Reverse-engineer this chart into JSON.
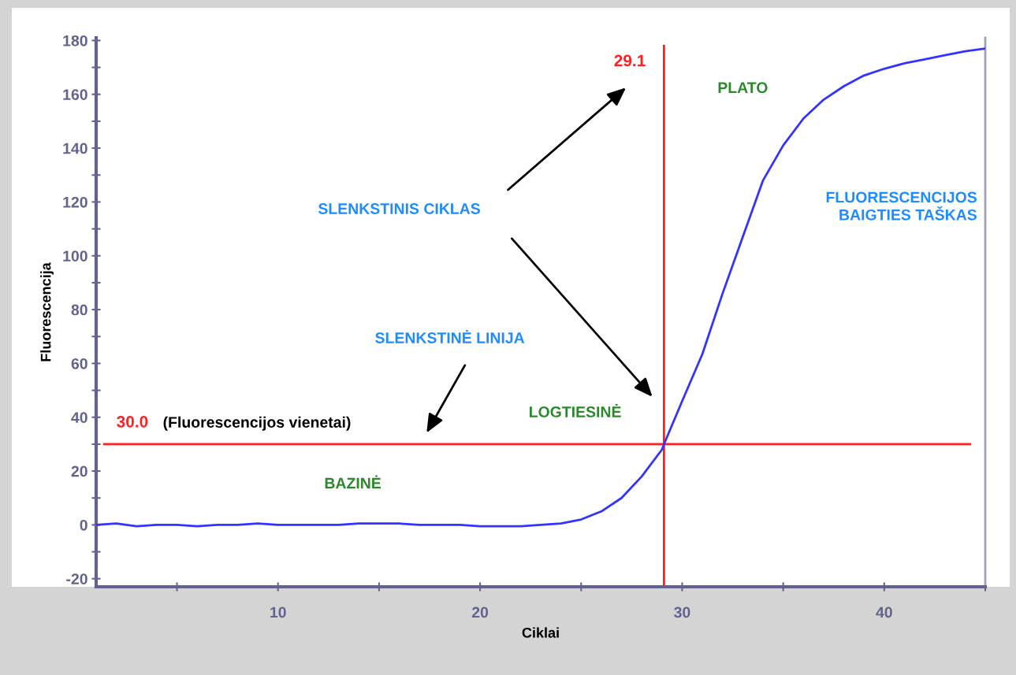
{
  "chart_data": {
    "type": "line",
    "xlabel": "Ciklai",
    "ylabel": "Fluorescencija",
    "x": [
      1,
      2,
      3,
      4,
      5,
      6,
      7,
      8,
      9,
      10,
      11,
      12,
      13,
      14,
      15,
      16,
      17,
      18,
      19,
      20,
      21,
      22,
      23,
      24,
      25,
      26,
      27,
      28,
      29,
      29.1,
      30,
      31,
      32,
      33,
      34,
      35,
      36,
      37,
      38,
      39,
      40,
      41,
      42,
      43,
      44,
      45
    ],
    "series": [
      {
        "color": "#3333ff",
        "values": [
          0,
          0.5,
          -0.5,
          0,
          0,
          -0.5,
          0,
          0,
          0.5,
          0,
          0,
          0,
          0,
          0.5,
          0.5,
          0.5,
          0,
          0,
          0,
          -0.5,
          -0.5,
          -0.5,
          0,
          0.5,
          2,
          5,
          10,
          18,
          28,
          30,
          46,
          63.5,
          86,
          107,
          128,
          141,
          151,
          158,
          163,
          167,
          169.5,
          171.5,
          173,
          174.5,
          176,
          177
        ]
      }
    ],
    "xlim": [
      1,
      45
    ],
    "xticks": [
      {
        "value": 5,
        "label": null
      },
      10,
      {
        "value": 15,
        "label": null
      },
      20,
      {
        "value": 25,
        "label": null
      },
      30,
      {
        "value": 35,
        "label": null
      },
      40,
      {
        "value": 45,
        "label": null
      }
    ],
    "ylim": [
      -23,
      181
    ],
    "yticks": [
      -20,
      {
        "value": -10,
        "label": null
      },
      0,
      {
        "value": 10,
        "label": null
      },
      20,
      {
        "value": 30,
        "label": null
      },
      40,
      {
        "value": 50,
        "label": null
      },
      60,
      {
        "value": 70,
        "label": null
      },
      80,
      {
        "value": 90,
        "label": null
      },
      100,
      {
        "value": 110,
        "label": null
      },
      120,
      {
        "value": 130,
        "label": null
      },
      140,
      {
        "value": 150,
        "label": null
      },
      160,
      {
        "value": 170,
        "label": null
      },
      180
    ],
    "grid": false,
    "legend": false,
    "marker": "none",
    "line_style": "solid",
    "ref_lines": [
      {
        "axis": "y",
        "value": 30,
        "label": "30.0",
        "color": "#ff2020"
      },
      {
        "axis": "x",
        "value": 29.1,
        "label": "29.1",
        "color": "#ff2020"
      }
    ],
    "annotations": [
      "(Fluorescencijos vienetai)",
      "SLENKSTINĖ LINIJA",
      "SLENKSTINIS CIKLAS",
      "BAZINĖ",
      "LOGTIESINĖ",
      "PLATO",
      "FLUORESCENCIJOS\nBAIGTIES TAŠKAS"
    ]
  }
}
